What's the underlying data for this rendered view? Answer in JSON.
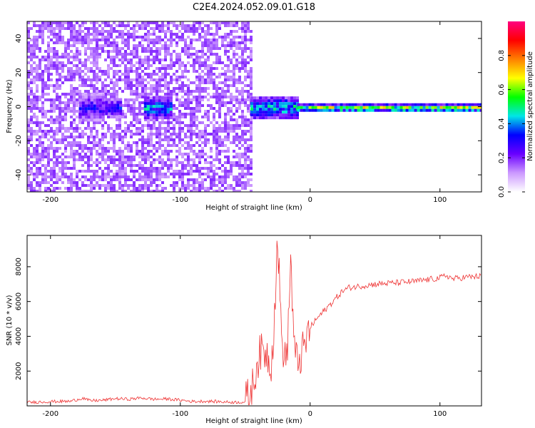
{
  "title": "C2E4.2024.052.09.01.G18",
  "chart_data": [
    {
      "type": "heatmap",
      "xlabel": "Height of straight line (km)",
      "ylabel": "Frequency (Hz)",
      "xlim": [
        -218,
        132
      ],
      "ylim": [
        -50,
        50
      ],
      "xticks": [
        -200,
        -100,
        0,
        100
      ],
      "yticks": [
        -40,
        -20,
        0,
        20,
        40
      ],
      "description_free": true,
      "regions": [
        {
          "x": [
            -218,
            -46
          ],
          "y": [
            -50,
            50
          ],
          "amplitude": 0.15
        },
        {
          "x": [
            -178,
            -160
          ],
          "y": [
            -8,
            8
          ],
          "amplitude": 0.3
        },
        {
          "x": [
            -158,
            -145
          ],
          "y": [
            -5,
            5
          ],
          "amplitude": 0.35
        },
        {
          "x": [
            -128,
            -108
          ],
          "y": [
            -6,
            6
          ],
          "amplitude": 0.45
        },
        {
          "x": [
            -46,
            -10
          ],
          "y": [
            -6,
            6
          ],
          "amplitude": 0.5
        },
        {
          "x": [
            -10,
            132
          ],
          "y": [
            -2,
            2
          ],
          "amplitude": 0.7
        }
      ],
      "colorbar": {
        "label": "Normalized spectral amplitude",
        "range": [
          0,
          1
        ],
        "ticks": [
          0.0,
          0.2,
          0.4,
          0.6,
          0.8
        ],
        "colors": [
          "#ffffff",
          "#cc99ff",
          "#6a00ff",
          "#0000ff",
          "#00e6e6",
          "#00ff00",
          "#ffff00",
          "#ff8000",
          "#ff0000",
          "#ff0080"
        ]
      },
      "grid": false
    },
    {
      "type": "line",
      "xlabel": "Height of straight line (km)",
      "ylabel": "SNR (10 * v/v)",
      "xlim": [
        -218,
        132
      ],
      "ylim": [
        0,
        9800
      ],
      "xticks": [
        -200,
        -100,
        0,
        100
      ],
      "yticks": [
        2000,
        4000,
        6000,
        8000
      ],
      "color": "#ee3333",
      "series": [
        {
          "x": [
            -218,
            -200,
            -185,
            -175,
            -170,
            -160,
            -150,
            -140,
            -130,
            -120,
            -110,
            -100,
            -90,
            -80,
            -70,
            -60,
            -50,
            -45,
            -40,
            -35,
            -30,
            -28,
            -25,
            -22,
            -20,
            -18,
            -15,
            -12,
            -10,
            -5,
            0,
            5,
            10,
            15,
            20,
            25,
            30,
            40,
            50,
            60,
            70,
            80,
            90,
            100,
            105,
            110,
            120,
            132
          ],
          "y": [
            200,
            250,
            260,
            450,
            300,
            320,
            420,
            380,
            460,
            380,
            400,
            330,
            250,
            270,
            240,
            210,
            220,
            800,
            2800,
            3200,
            2500,
            4500,
            9700,
            4000,
            3000,
            2500,
            8400,
            3000,
            2500,
            3200,
            4500,
            5000,
            5400,
            5800,
            6200,
            6600,
            6800,
            6900,
            7000,
            7050,
            7100,
            7150,
            7250,
            7350,
            7500,
            7300,
            7400,
            7450
          ]
        }
      ],
      "grid": false
    }
  ]
}
